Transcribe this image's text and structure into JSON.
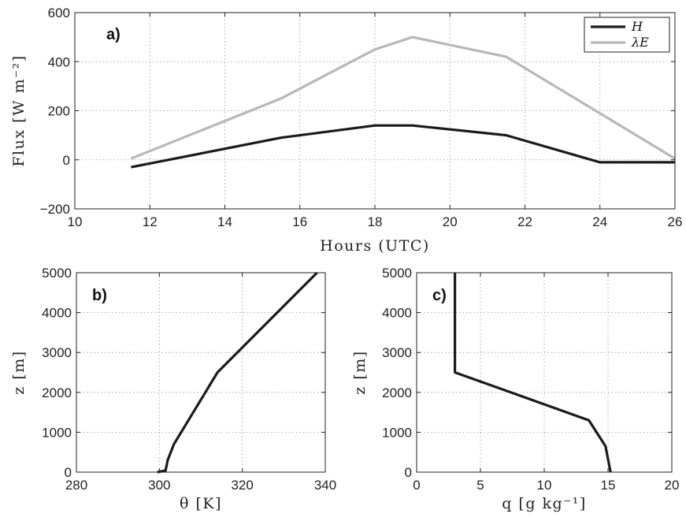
{
  "chart_data": [
    {
      "type": "line",
      "panel_label": "a)",
      "xlabel": "Hours (UTC)",
      "ylabel": "Flux [W m⁻²]",
      "xlim": [
        10,
        26
      ],
      "ylim": [
        -200,
        600
      ],
      "xticks": [
        10,
        12,
        14,
        16,
        18,
        20,
        22,
        24,
        26
      ],
      "yticks": [
        -200,
        0,
        200,
        400,
        600
      ],
      "grid": true,
      "legend_position": "top-right",
      "series": [
        {
          "name": "H",
          "color": "#1a1a1a",
          "x": [
            11.5,
            15.5,
            18,
            19,
            21.5,
            24,
            26
          ],
          "y": [
            -30,
            90,
            140,
            140,
            100,
            -10,
            -10
          ]
        },
        {
          "name": "λE",
          "color": "#b8b8b8",
          "x": [
            11.5,
            15.5,
            18,
            19,
            21.5,
            26
          ],
          "y": [
            5,
            250,
            450,
            500,
            420,
            5
          ]
        }
      ]
    },
    {
      "type": "line",
      "panel_label": "b)",
      "xlabel": "θ [K]",
      "ylabel": "z [m]",
      "xlim": [
        280,
        340
      ],
      "ylim": [
        0,
        5000
      ],
      "xticks": [
        280,
        300,
        320,
        340
      ],
      "yticks": [
        0,
        1000,
        2000,
        3000,
        4000,
        5000
      ],
      "grid": true,
      "series": [
        {
          "color": "#1a1a1a",
          "x": [
            299.5,
            301.5,
            302,
            303.5,
            314,
            338
          ],
          "y": [
            0,
            40,
            300,
            700,
            2500,
            5000
          ]
        }
      ]
    },
    {
      "type": "line",
      "panel_label": "c)",
      "xlabel": "q [g kg⁻¹]",
      "ylabel": "z [m]",
      "xlim": [
        0,
        20
      ],
      "ylim": [
        0,
        5000
      ],
      "xticks": [
        0,
        5,
        10,
        15,
        20
      ],
      "yticks": [
        0,
        1000,
        2000,
        3000,
        4000,
        5000
      ],
      "grid": true,
      "series": [
        {
          "color": "#1a1a1a",
          "x": [
            3,
            3,
            13.5,
            14.8,
            15.2
          ],
          "y": [
            5000,
            2500,
            1300,
            650,
            0
          ]
        }
      ]
    }
  ]
}
